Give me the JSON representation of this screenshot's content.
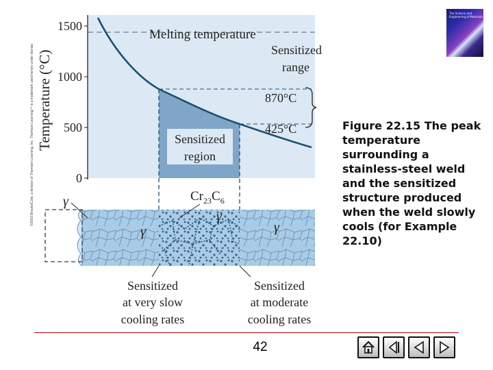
{
  "figure": {
    "y_axis_label": "Temperature (°C)",
    "y_ticks": [
      "1500",
      "1000",
      "500",
      "0"
    ],
    "melting_label": "Melting temperature",
    "sensitized_range_line1": "Sensitized",
    "sensitized_range_line2": "range",
    "temp_870": "870°C",
    "temp_425": "425°C",
    "sensitized_region_line1": "Sensitized",
    "sensitized_region_line2": "region",
    "carbide_formula": "Cr23C6",
    "carbide_base": "Cr",
    "carbide_sub1": "23",
    "carbide_mid": "C",
    "carbide_sub2": "6",
    "gamma_symbol": "γ",
    "slow_line1": "Sensitized",
    "slow_line2": "at very slow",
    "slow_line3": "cooling rates",
    "moderate_line1": "Sensitized",
    "moderate_line2": "at moderate",
    "moderate_line3": "cooling rates"
  },
  "copyright": "©2003 Brooks/Cole, a division of Thomson Learning, Inc. Thomson Learning™ is a trademark used herein under license.",
  "caption": "Figure 22.15 The peak temperature surrounding a stainless-steel weld and the sensitized structure produced when the weld slowly cools (for Example 22.10)",
  "page_number": "42",
  "book_cover": {
    "title": "The Science and Engineering of Materials"
  },
  "navigation": {
    "buttons": [
      "home-icon",
      "back-icon",
      "previous-icon",
      "next-icon"
    ]
  },
  "colors": {
    "chart_background": "#dce9f4",
    "curve": "#1d4f72",
    "region_fill": "#7fa6c9",
    "plate_fill": "#a9cbe6",
    "grain_lines": "#5b86a8",
    "carbide_dots": "#23507a",
    "footer_line": "#b00000"
  }
}
